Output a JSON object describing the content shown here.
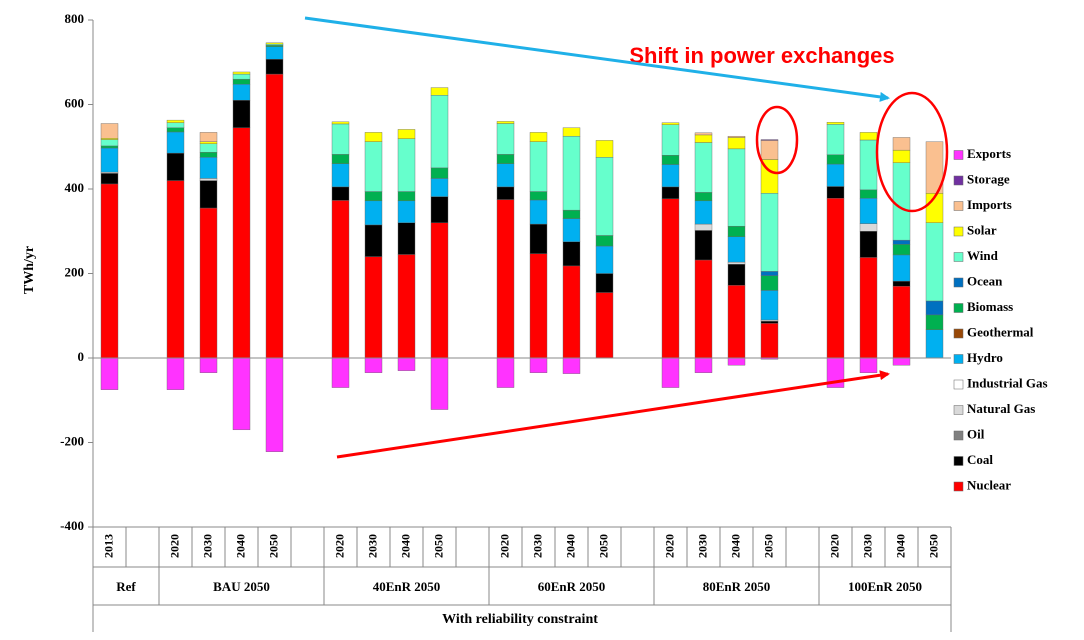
{
  "chart_data": {
    "type": "stacked-bar",
    "annotation": "Shift in power exchanges",
    "ylabel": "TWh/yr",
    "xlabel": "With reliability constraint",
    "ylim": [
      -400,
      800
    ],
    "yticks": [
      -400,
      -200,
      0,
      200,
      400,
      600,
      800
    ],
    "groups": [
      {
        "name": "Ref",
        "categories": [
          "2013"
        ]
      },
      {
        "name": "BAU 2050",
        "categories": [
          "2020",
          "2030",
          "2040",
          "2050"
        ]
      },
      {
        "name": "40EnR 2050",
        "categories": [
          "2020",
          "2030",
          "2040",
          "2050"
        ]
      },
      {
        "name": "60EnR 2050",
        "categories": [
          "2020",
          "2030",
          "2040",
          "2050"
        ]
      },
      {
        "name": "80EnR 2050",
        "categories": [
          "2020",
          "2030",
          "2040",
          "2050"
        ]
      },
      {
        "name": "100EnR 2050",
        "categories": [
          "2020",
          "2030",
          "2040",
          "2050"
        ]
      }
    ],
    "series": [
      {
        "name": "Exports",
        "color": "#ff33ff",
        "values": [
          -75,
          -75,
          -35,
          -170,
          -222,
          -70,
          -35,
          -30,
          -122,
          -70,
          -35,
          -37,
          0,
          -70,
          -35,
          -17,
          -3,
          -70,
          -35,
          -17,
          0
        ]
      },
      {
        "name": "Storage",
        "color": "#7030a0",
        "values": [
          0,
          0,
          0,
          0,
          0,
          0,
          0,
          0,
          0,
          0,
          0,
          0,
          0,
          0,
          0,
          0,
          2,
          0,
          0,
          0,
          0
        ]
      },
      {
        "name": "Imports",
        "color": "#fac090",
        "values": [
          35,
          0,
          22,
          0,
          0,
          0,
          0,
          0,
          0,
          0,
          0,
          0,
          0,
          0,
          5,
          3,
          45,
          0,
          0,
          30,
          122
        ]
      },
      {
        "name": "Solar",
        "color": "#ffff00",
        "values": [
          3,
          6,
          5,
          5,
          3,
          5,
          22,
          22,
          18,
          5,
          22,
          20,
          40,
          5,
          18,
          27,
          80,
          5,
          18,
          30,
          70
        ]
      },
      {
        "name": "Wind",
        "color": "#66ffcc",
        "values": [
          15,
          12,
          20,
          12,
          3,
          72,
          118,
          125,
          172,
          73,
          118,
          175,
          185,
          72,
          118,
          183,
          185,
          72,
          118,
          183,
          185
        ]
      },
      {
        "name": "Ocean",
        "color": "#0070c0",
        "values": [
          0,
          0,
          0,
          0,
          0,
          0,
          0,
          0,
          0,
          0,
          0,
          0,
          0,
          0,
          0,
          0,
          10,
          0,
          0,
          10,
          33
        ]
      },
      {
        "name": "Biomass",
        "color": "#00b050",
        "values": [
          5,
          10,
          12,
          12,
          3,
          22,
          22,
          22,
          25,
          22,
          20,
          20,
          25,
          22,
          20,
          25,
          35,
          22,
          20,
          25,
          35
        ]
      },
      {
        "name": "Geothermal",
        "color": "#984807",
        "values": [
          0,
          0,
          0,
          0,
          0,
          0,
          0,
          0,
          0,
          0,
          0,
          0,
          0,
          0,
          0,
          0,
          0,
          0,
          0,
          0,
          0
        ]
      },
      {
        "name": "Hydro",
        "color": "#00b0f0",
        "values": [
          57,
          50,
          50,
          38,
          30,
          55,
          57,
          52,
          43,
          55,
          57,
          55,
          65,
          53,
          55,
          60,
          70,
          53,
          60,
          62,
          67
        ]
      },
      {
        "name": "Industrial Gas",
        "color": "#ffffff",
        "values": [
          0,
          0,
          0,
          0,
          0,
          0,
          0,
          0,
          0,
          0,
          0,
          0,
          0,
          0,
          0,
          0,
          0,
          0,
          0,
          0,
          0
        ]
      },
      {
        "name": "Natural Gas",
        "color": "#d9d9d9",
        "values": [
          3,
          0,
          5,
          0,
          0,
          0,
          0,
          0,
          0,
          0,
          0,
          0,
          0,
          0,
          15,
          5,
          3,
          0,
          18,
          0,
          0
        ]
      },
      {
        "name": "Oil",
        "color": "#808080",
        "values": [
          0,
          0,
          0,
          0,
          0,
          0,
          0,
          0,
          0,
          0,
          0,
          0,
          0,
          0,
          0,
          0,
          0,
          0,
          0,
          0,
          0
        ]
      },
      {
        "name": "Coal",
        "color": "#000000",
        "values": [
          25,
          65,
          65,
          65,
          35,
          32,
          75,
          75,
          62,
          30,
          70,
          57,
          45,
          28,
          70,
          50,
          5,
          28,
          62,
          12,
          0
        ]
      },
      {
        "name": "Nuclear",
        "color": "#ff0000",
        "values": [
          412,
          420,
          355,
          545,
          672,
          373,
          240,
          245,
          320,
          375,
          247,
          218,
          155,
          377,
          232,
          172,
          82,
          378,
          238,
          170,
          0
        ]
      }
    ]
  }
}
